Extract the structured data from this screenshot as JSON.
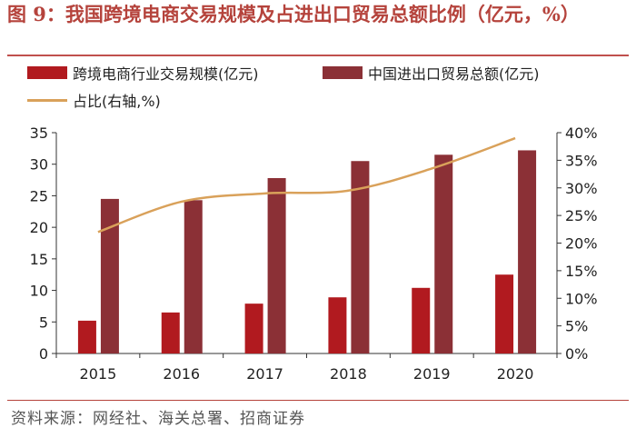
{
  "title": "图 9：我国跨境电商交易规模及占进出口贸易总额比例（亿元，%）",
  "source": "资料来源：网经社、海关总署、招商证券",
  "colors": {
    "bar1": "#b11a1f",
    "bar2": "#8b3036",
    "line": "#d9a15a",
    "title": "#b5433c"
  },
  "chart_data": {
    "type": "bar",
    "categories": [
      "2015",
      "2016",
      "2017",
      "2018",
      "2019",
      "2020"
    ],
    "series": [
      {
        "name": "跨境电商行业交易规模(亿元)",
        "values": [
          5.2,
          6.5,
          7.9,
          8.9,
          10.4,
          12.5
        ],
        "axis": "left",
        "kind": "bar"
      },
      {
        "name": "中国进出口贸易总额(亿元)",
        "values": [
          24.5,
          24.3,
          27.8,
          30.5,
          31.5,
          32.2
        ],
        "axis": "left",
        "kind": "bar"
      },
      {
        "name": "占比(右轴,%)",
        "values": [
          22,
          27.5,
          29,
          29.5,
          33.5,
          39
        ],
        "axis": "right",
        "kind": "line"
      }
    ],
    "ylim": [
      0,
      35
    ],
    "yticks": [
      "0",
      "5",
      "10",
      "15",
      "20",
      "25",
      "30",
      "35"
    ],
    "y2lim": [
      0,
      40
    ],
    "y2ticks": [
      "0%",
      "5%",
      "10%",
      "15%",
      "20%",
      "25%",
      "30%",
      "35%",
      "40%"
    ],
    "legend_position": "top",
    "grid": false
  }
}
